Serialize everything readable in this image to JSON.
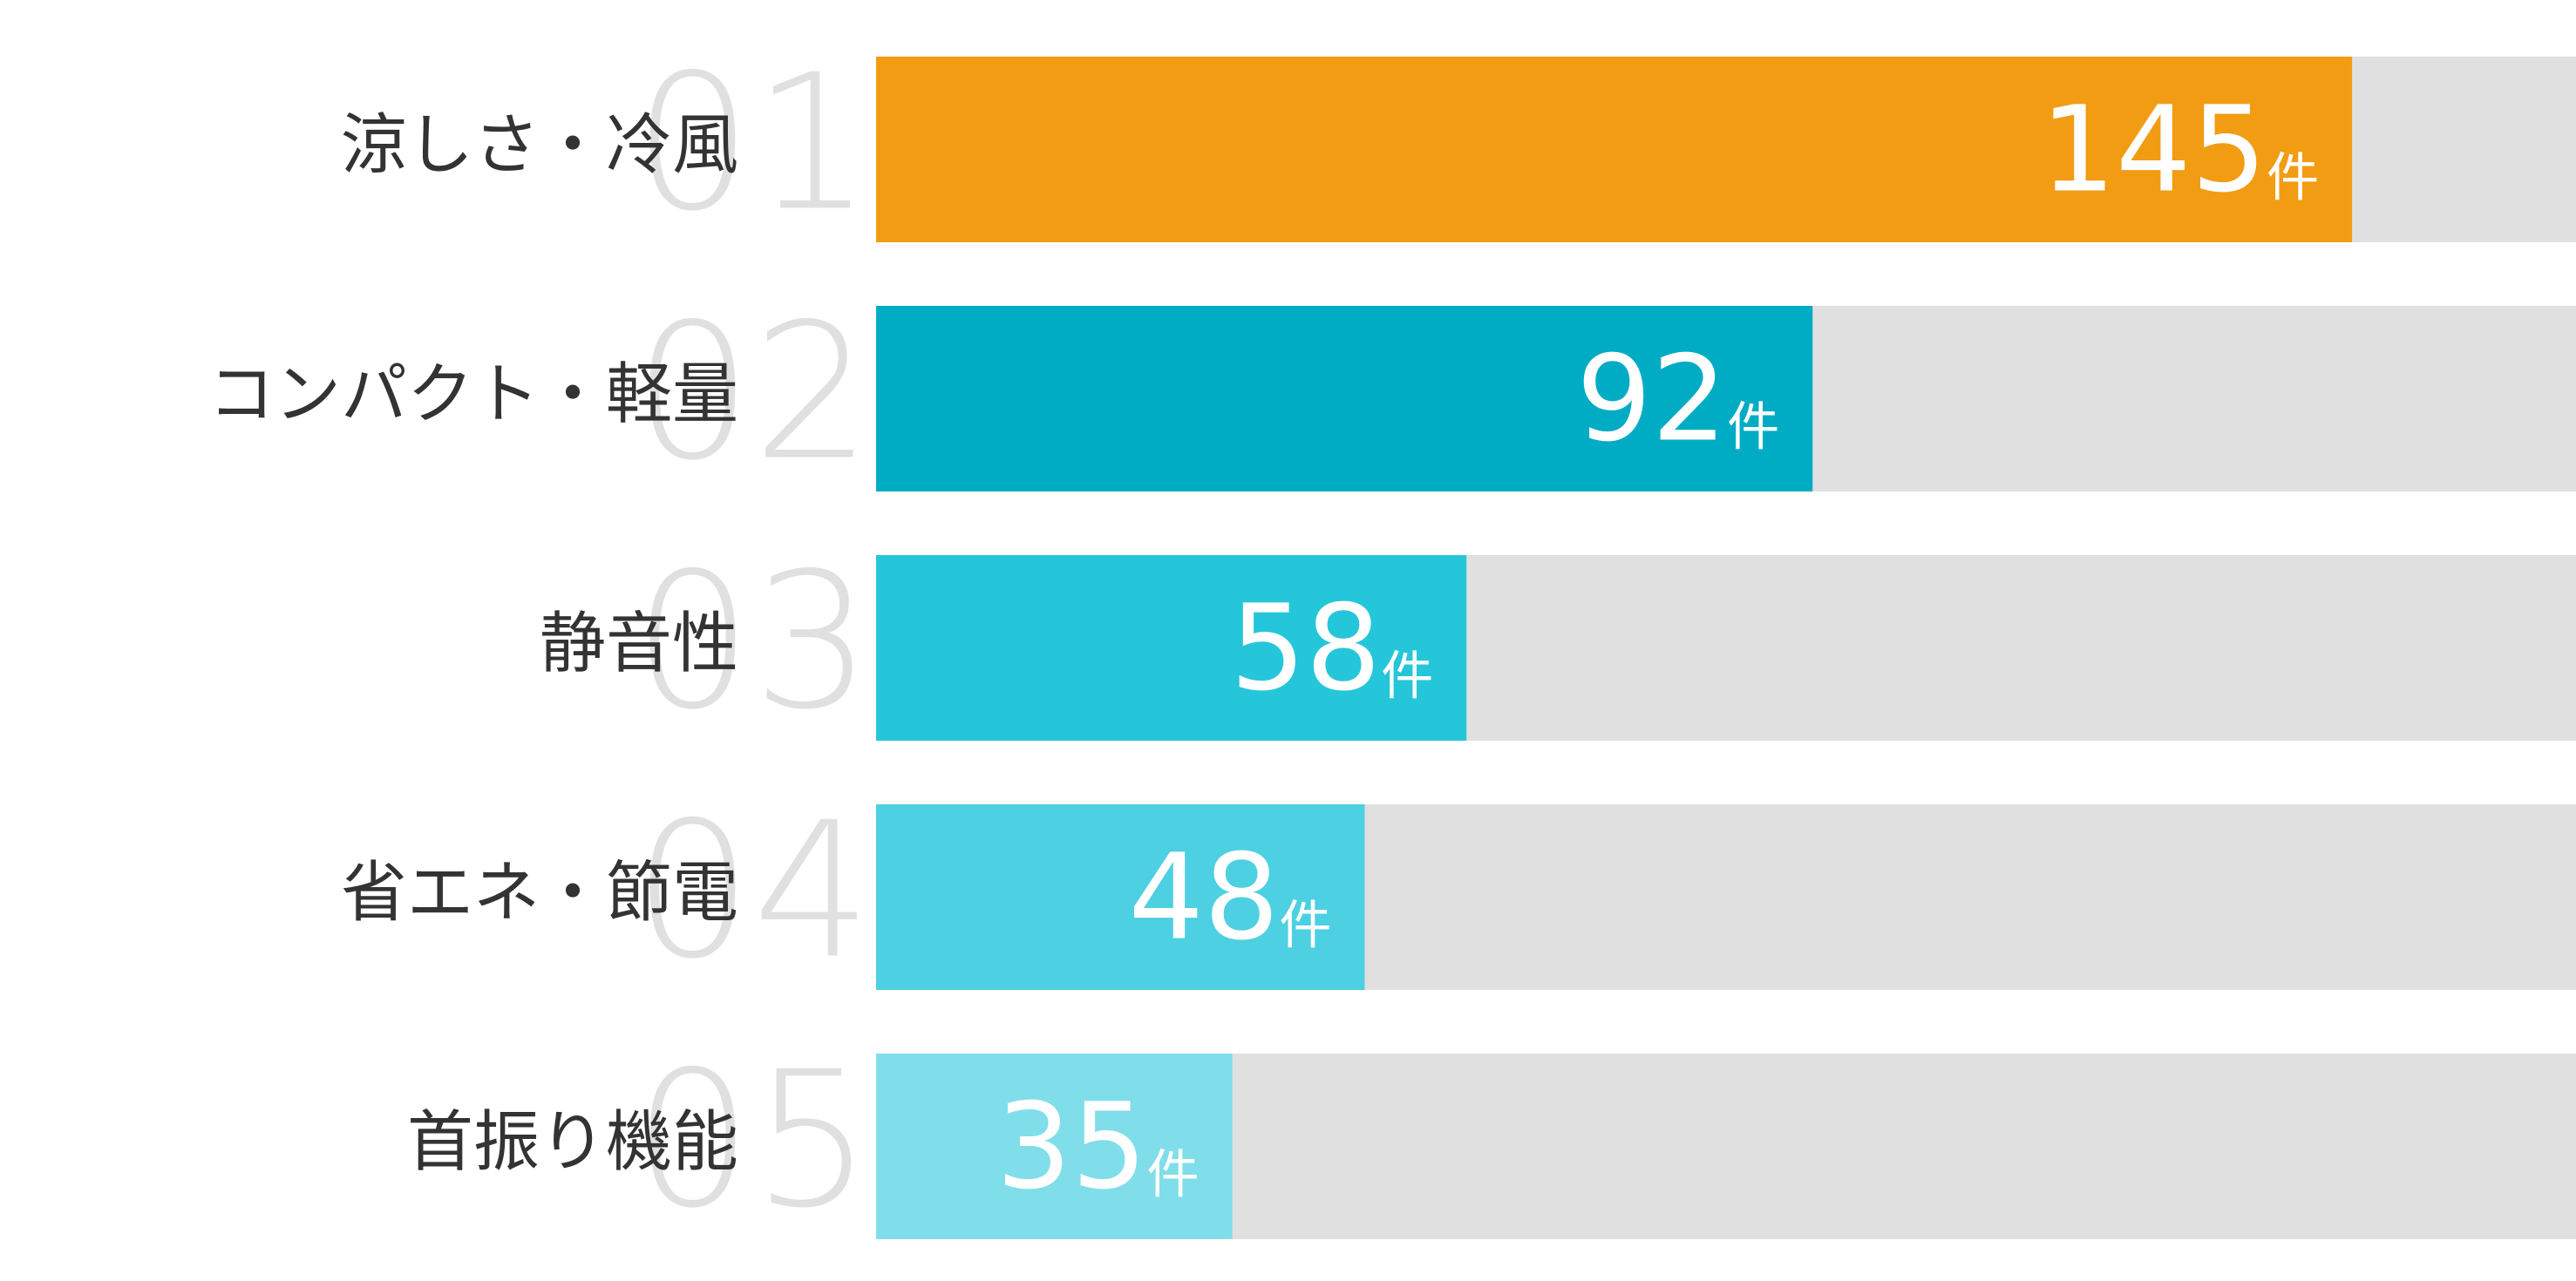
{
  "chart_data": {
    "type": "bar",
    "orientation": "horizontal",
    "categories": [
      "涼しさ・冷風",
      "コンパクト・軽量",
      "静音性",
      "省エネ・節電",
      "首振り機能"
    ],
    "ranks": [
      "01",
      "02",
      "03",
      "04",
      "05"
    ],
    "values": [
      145,
      92,
      58,
      48,
      35
    ],
    "unit": "件",
    "colors": [
      "#f29c13",
      "#00acc4",
      "#26c6da",
      "#4dd0e1",
      "#80deea"
    ],
    "track_color": "#e0e0e0",
    "xlim": [
      0,
      167
    ]
  }
}
